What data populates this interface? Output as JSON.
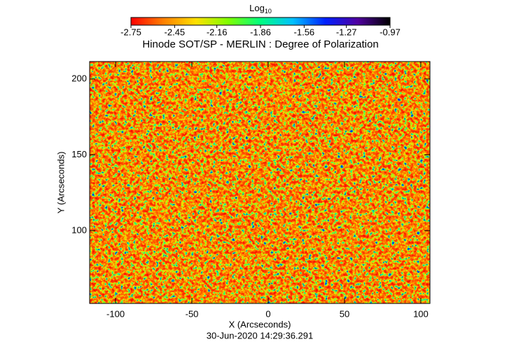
{
  "chart_data": {
    "type": "heatmap",
    "title": "Hinode SOT/SP - MERLIN : Degree of Polarization",
    "xlabel": "X (Arcseconds)",
    "ylabel": "Y (Arcseconds)",
    "footer": "30-Jun-2020 14:29:36.291",
    "xlim": [
      -117,
      106
    ],
    "ylim": [
      52,
      211.5
    ],
    "xticks": [
      -100,
      -50,
      0,
      50,
      100
    ],
    "yticks": [
      100,
      150,
      200
    ],
    "grid": false,
    "colorbar": {
      "label": "Log",
      "label_sub": "10",
      "clim": [
        -2.75,
        -0.97
      ],
      "ticks": [
        -2.75,
        -2.45,
        -2.16,
        -1.86,
        -1.56,
        -1.27,
        -0.97
      ],
      "colormap": [
        "#ff0000",
        "#ff8000",
        "#ffe000",
        "#80ff00",
        "#00ff80",
        "#00c0ff",
        "#0020ff",
        "#5000a0",
        "#000000"
      ]
    }
  }
}
